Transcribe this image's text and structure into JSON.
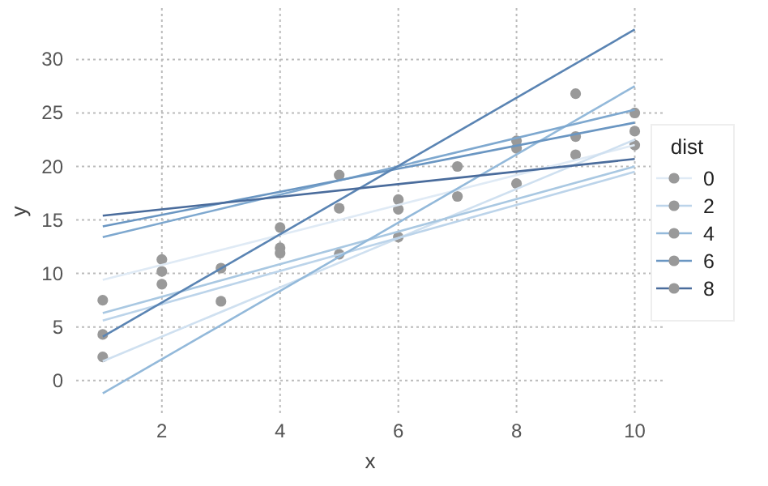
{
  "chart_data": {
    "type": "line",
    "xlabel": "x",
    "ylabel": "y",
    "legend_title": "dist",
    "legend": "right",
    "grid": true,
    "xlim": [
      0.55,
      10.5
    ],
    "ylim": [
      -3.2,
      34.8
    ],
    "xticks": [
      2,
      4,
      6,
      8,
      10
    ],
    "yticks": [
      0,
      5,
      10,
      15,
      20,
      25,
      30
    ],
    "series": [
      {
        "type": "scatter",
        "color": "#999999",
        "x": [
          1,
          1,
          1,
          2,
          2,
          2,
          3,
          3,
          4,
          4,
          4,
          5,
          5,
          5,
          6,
          6,
          6,
          7,
          7,
          8,
          8,
          8,
          9,
          9,
          9,
          10,
          10,
          10
        ],
        "values": [
          7.5,
          4.3,
          2.2,
          11.3,
          10.2,
          9.0,
          10.5,
          7.4,
          14.3,
          12.4,
          11.9,
          19.2,
          16.1,
          11.8,
          16.9,
          16.0,
          13.4,
          20.0,
          17.2,
          22.4,
          21.7,
          18.4,
          26.8,
          22.8,
          21.1,
          25.0,
          23.3,
          22.0
        ]
      },
      {
        "name": "0",
        "color": "#dfeaf5",
        "x": [
          1,
          10
        ],
        "values": [
          9.4,
          22.0
        ]
      },
      {
        "color": "#cfe0f0",
        "x": [
          1,
          10
        ],
        "values": [
          1.8,
          22.5
        ]
      },
      {
        "name": "2",
        "color": "#bcd4ea",
        "x": [
          1,
          10
        ],
        "values": [
          5.6,
          19.5
        ]
      },
      {
        "color": "#a9c8e2",
        "x": [
          1,
          10
        ],
        "values": [
          6.3,
          20.0
        ]
      },
      {
        "name": "4",
        "color": "#93b9da",
        "x": [
          1,
          10
        ],
        "values": [
          -1.2,
          27.5
        ]
      },
      {
        "color": "#7ea8cf",
        "x": [
          1,
          10
        ],
        "values": [
          13.4,
          25.3
        ]
      },
      {
        "name": "6",
        "color": "#6a96c2",
        "x": [
          1,
          10
        ],
        "values": [
          14.4,
          24.1
        ]
      },
      {
        "color": "#5a84b3",
        "x": [
          1,
          10
        ],
        "values": [
          4.1,
          32.8
        ]
      },
      {
        "name": "8",
        "color": "#4a6c9c",
        "x": [
          1,
          10
        ],
        "values": [
          15.4,
          20.7
        ]
      }
    ]
  }
}
